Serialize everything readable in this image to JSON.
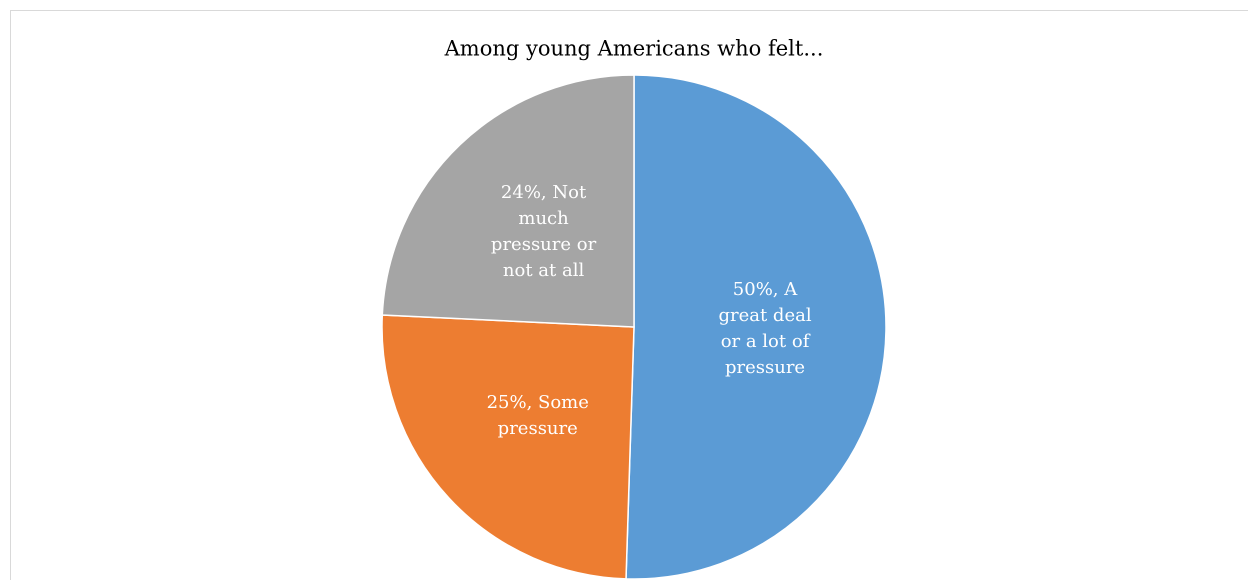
{
  "chart_data": {
    "type": "pie",
    "title": "Among young Americans who felt...",
    "values": [
      50,
      25,
      24
    ],
    "value_labels": [
      "50%, A great deal or a lot of pressure",
      "25%, Some pressure",
      "24%, Not much pressure or not at all"
    ],
    "colors": [
      "#5b9bd5",
      "#ed7d31",
      "#a5a5a5"
    ],
    "start_angle": 0,
    "direction": "clockwise"
  }
}
